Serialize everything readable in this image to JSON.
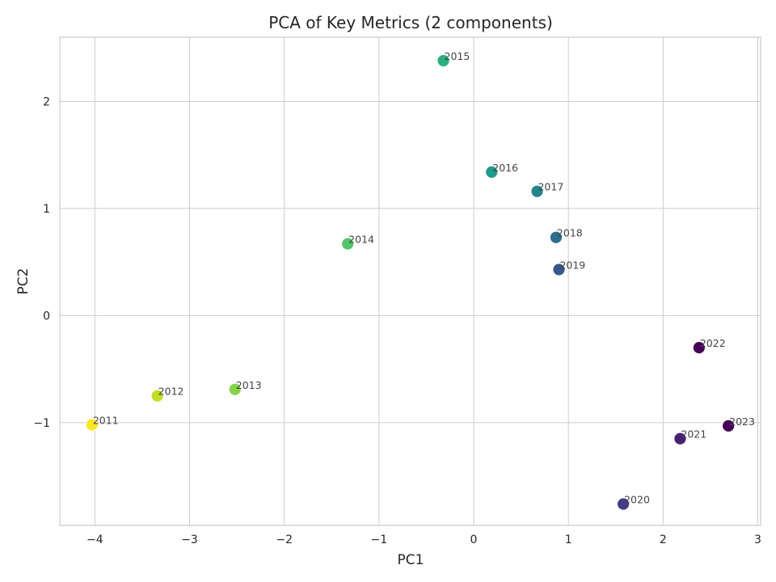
{
  "chart_data": {
    "type": "scatter",
    "title": "PCA of Key Metrics (2 components)",
    "xlabel": "PC1",
    "ylabel": "PC2",
    "xlim": [
      -4.37,
      3.03
    ],
    "ylim": [
      -1.96,
      2.6
    ],
    "xticks": [
      -4,
      -3,
      -2,
      -1,
      0,
      1,
      2,
      3
    ],
    "yticks": [
      -1,
      0,
      1,
      2
    ],
    "grid": true,
    "colormap": "viridis",
    "points": [
      {
        "label": "2011",
        "x": -4.03,
        "y": -1.02,
        "color": "#fde725"
      },
      {
        "label": "2012",
        "x": -3.34,
        "y": -0.75,
        "color": "#c2df23"
      },
      {
        "label": "2013",
        "x": -2.52,
        "y": -0.69,
        "color": "#86d549"
      },
      {
        "label": "2014",
        "x": -1.33,
        "y": 0.67,
        "color": "#52c569"
      },
      {
        "label": "2015",
        "x": -0.32,
        "y": 2.38,
        "color": "#2ab07f"
      },
      {
        "label": "2016",
        "x": 0.19,
        "y": 1.34,
        "color": "#1e9b8a"
      },
      {
        "label": "2017",
        "x": 0.67,
        "y": 1.16,
        "color": "#25858e"
      },
      {
        "label": "2018",
        "x": 0.87,
        "y": 0.73,
        "color": "#2d708e"
      },
      {
        "label": "2019",
        "x": 0.9,
        "y": 0.43,
        "color": "#38588c"
      },
      {
        "label": "2020",
        "x": 1.58,
        "y": -1.76,
        "color": "#433e85"
      },
      {
        "label": "2021",
        "x": 2.18,
        "y": -1.15,
        "color": "#482173"
      },
      {
        "label": "2022",
        "x": 2.38,
        "y": -0.3,
        "color": "#440154"
      },
      {
        "label": "2023",
        "x": 2.69,
        "y": -1.03,
        "color": "#440154"
      }
    ]
  }
}
